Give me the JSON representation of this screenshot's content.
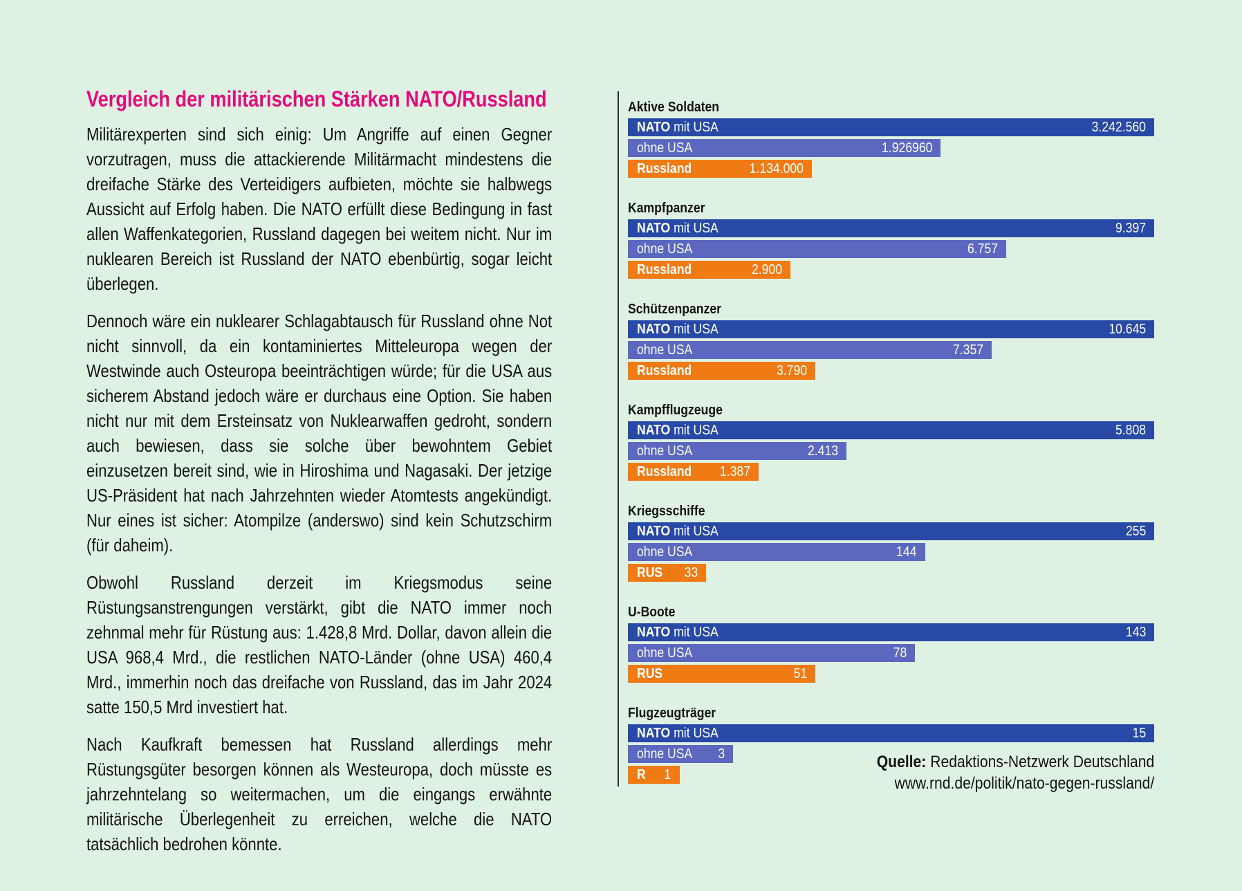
{
  "page": {
    "background": "#dff1e2"
  },
  "colors": {
    "background": "#dff1e2",
    "title": "#e30b7d",
    "text": "#131313",
    "nato": "#2849a6",
    "ohne": "#5c68c0",
    "rus": "#f07b14",
    "bar_text": "#ffffff",
    "divider": "#2a2a2a"
  },
  "article": {
    "title": "Vergleich der militärischen Stärken NATO/Russland",
    "paragraphs": [
      "Militärexperten sind sich einig: Um Angriffe auf einen Gegner vorzutragen, muss die attackierende Militärmacht mindestens die dreifache Stärke des Verteidigers aufbieten, möchte sie halbwegs Aussicht auf Erfolg haben. Die NATO erfüllt diese Bedingung in fast allen Waffenkategorien, Russland dagegen bei weitem nicht. Nur im nuklearen Bereich ist Russland der NATO ebenbürtig, sogar leicht überlegen.",
      "Dennoch wäre ein nuklearer Schlagabtausch für Russland ohne Not nicht sinnvoll, da ein kontaminiertes Mitteleuropa wegen der Westwinde auch Osteuropa beeinträchtigen würde; für die USA aus sicherem Abstand jedoch wäre er durchaus eine Option. Sie haben nicht nur mit dem Ersteinsatz von Nuklearwaffen gedroht, sondern auch bewiesen, dass sie solche über bewohntem Gebiet einzusetzen bereit sind, wie in Hiroshima und Nagasaki. Der jetzige US-Präsident hat nach Jahrzehnten wieder Atomtests angekündigt. Nur eines ist sicher: Atompilze (anderswo) sind kein Schutzschirm (für daheim).",
      "Obwohl Russland derzeit im Kriegsmodus seine Rüstungsanstrengungen verstärkt, gibt die NATO immer noch zehnmal mehr für Rüstung aus: 1.428,8 Mrd. Dollar, davon allein die USA 968,4 Mrd., die restlichen NATO-Länder (ohne USA) 460,4 Mrd., immerhin noch das dreifache von Russland, das im Jahr 2024 satte 150,5 Mrd investiert hat.",
      "Nach Kaufkraft bemessen hat Russland allerdings mehr Rüstungsgüter besorgen können als Westeuropa, doch müsste es jahrzehntelang so weitermachen, um die eingangs erwähnte militärische Überlegenheit zu erreichen, welche die NATO tatsächlich bedrohen könnte."
    ]
  },
  "source": {
    "label": "Quelle:",
    "name": "Redaktions-Netzwerk Deutschland",
    "url": "www.rnd.de/politik/nato-gegen-russland/"
  },
  "chart_data": {
    "type": "bar",
    "orientation": "horizontal",
    "scaling": "each group scaled so the NATO-mit-USA bar spans the full chart width",
    "legend": [
      "NATO mit USA",
      "ohne USA",
      "Russland"
    ],
    "groups": [
      {
        "category": "Aktive Soldaten",
        "bars": [
          {
            "series": "NATO mit USA",
            "label_bold": "NATO",
            "label_rest": " mit USA",
            "value": 3242560,
            "value_label": "3.242.560",
            "color": "nato"
          },
          {
            "series": "ohne USA",
            "label_bold": "",
            "label_rest": "ohne USA",
            "value": 1926960,
            "value_label": "1.926960",
            "color": "ohne"
          },
          {
            "series": "Russland",
            "label_bold": "Russland",
            "label_rest": "",
            "value": 1134000,
            "value_label": "1.134.000",
            "color": "rus"
          }
        ]
      },
      {
        "category": "Kampfpanzer",
        "bars": [
          {
            "series": "NATO mit USA",
            "label_bold": "NATO",
            "label_rest": " mit USA",
            "value": 9397,
            "value_label": "9.397",
            "color": "nato"
          },
          {
            "series": "ohne USA",
            "label_bold": "",
            "label_rest": "ohne USA",
            "value": 6757,
            "value_label": "6.757",
            "color": "ohne"
          },
          {
            "series": "Russland",
            "label_bold": "Russland",
            "label_rest": "",
            "value": 2900,
            "value_label": "2.900",
            "color": "rus"
          }
        ]
      },
      {
        "category": "Schützenpanzer",
        "bars": [
          {
            "series": "NATO mit USA",
            "label_bold": "NATO",
            "label_rest": " mit USA",
            "value": 10645,
            "value_label": "10.645",
            "color": "nato"
          },
          {
            "series": "ohne USA",
            "label_bold": "",
            "label_rest": "ohne USA",
            "value": 7357,
            "value_label": "7.357",
            "color": "ohne"
          },
          {
            "series": "Russland",
            "label_bold": "Russland",
            "label_rest": "",
            "value": 3790,
            "value_label": "3.790",
            "color": "rus"
          }
        ]
      },
      {
        "category": "Kampfflugzeuge",
        "bars": [
          {
            "series": "NATO mit USA",
            "label_bold": "NATO",
            "label_rest": " mit USA",
            "value": 5808,
            "value_label": "5.808",
            "color": "nato"
          },
          {
            "series": "ohne USA",
            "label_bold": "",
            "label_rest": "ohne USA",
            "value": 2413,
            "value_label": "2.413",
            "color": "ohne"
          },
          {
            "series": "Russland",
            "label_bold": "Russland",
            "label_rest": "",
            "value": 1387,
            "value_label": "1.387",
            "color": "rus"
          }
        ]
      },
      {
        "category": "Kriegsschiffe",
        "bars": [
          {
            "series": "NATO mit USA",
            "label_bold": "NATO",
            "label_rest": " mit USA",
            "value": 255,
            "value_label": "255",
            "color": "nato"
          },
          {
            "series": "ohne USA",
            "label_bold": "",
            "label_rest": "ohne USA",
            "value": 144,
            "value_label": "144",
            "color": "ohne"
          },
          {
            "series": "Russland",
            "label_bold": "RUS",
            "label_rest": "",
            "value": 33,
            "value_label": "33",
            "color": "rus"
          }
        ]
      },
      {
        "category": "U-Boote",
        "bars": [
          {
            "series": "NATO mit USA",
            "label_bold": "NATO",
            "label_rest": " mit USA",
            "value": 143,
            "value_label": "143",
            "color": "nato"
          },
          {
            "series": "ohne USA",
            "label_bold": "",
            "label_rest": "ohne USA",
            "value": 78,
            "value_label": "78",
            "color": "ohne"
          },
          {
            "series": "Russland",
            "label_bold": "RUS",
            "label_rest": "",
            "value": 51,
            "value_label": "51",
            "color": "rus"
          }
        ]
      },
      {
        "category": "Flugzeugträger",
        "bars": [
          {
            "series": "NATO mit USA",
            "label_bold": "NATO",
            "label_rest": " mit USA",
            "value": 15,
            "value_label": "15",
            "color": "nato"
          },
          {
            "series": "ohne USA",
            "label_bold": "",
            "label_rest": "ohne USA",
            "value": 3,
            "value_label": "3",
            "color": "ohne"
          },
          {
            "series": "Russland",
            "label_bold": "R",
            "label_rest": "",
            "value": 1,
            "value_label": "1",
            "color": "rus"
          }
        ]
      }
    ]
  }
}
